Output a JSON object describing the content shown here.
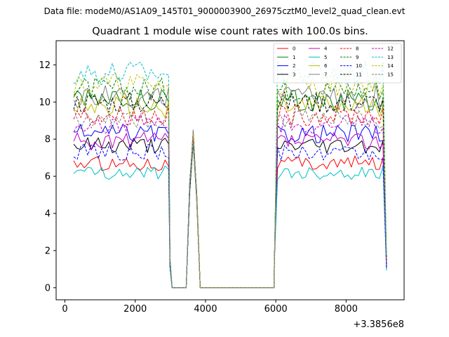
{
  "figure": {
    "suptitle": "Data file: modeM0/AS1A09_145T01_9000003900_26975cztM0_level2_quad_clean.evt"
  },
  "chart_data": {
    "type": "line",
    "title": "Quadrant 1 module wise count rates with 100.0s bins.",
    "xlabel": "",
    "ylabel": "",
    "x_offset_label": "+3.3856e8",
    "xlim": [
      -250,
      9650
    ],
    "ylim": [
      -0.65,
      13.3
    ],
    "xticks": [
      0,
      2000,
      4000,
      6000,
      8000
    ],
    "xtick_labels": [
      "0",
      "2000",
      "4000",
      "6000",
      "8000"
    ],
    "yticks": [
      0,
      2,
      4,
      6,
      8,
      10,
      12
    ],
    "ytick_labels": [
      "0",
      "2",
      "4",
      "6",
      "8",
      "10",
      "12"
    ],
    "grid": false,
    "legend_location": "top-right",
    "series": [
      {
        "name": "0",
        "color": "#ff0000",
        "dash": "solid",
        "level": 6.7
      },
      {
        "name": "1",
        "color": "#008000",
        "dash": "solid",
        "level": 10.1
      },
      {
        "name": "2",
        "color": "#0000ff",
        "dash": "solid",
        "level": 8.3
      },
      {
        "name": "3",
        "color": "#000000",
        "dash": "solid",
        "level": 7.7
      },
      {
        "name": "4",
        "color": "#bf00bf",
        "dash": "solid",
        "level": 7.9
      },
      {
        "name": "5",
        "color": "#00bfbf",
        "dash": "solid",
        "level": 6.2
      },
      {
        "name": "6",
        "color": "#bfbf00",
        "dash": "solid",
        "level": 9.7
      },
      {
        "name": "7",
        "color": "#808080",
        "dash": "solid",
        "level": 10.3
      },
      {
        "name": "8",
        "color": "#ff0000",
        "dash": "dashed",
        "level": 9.3
      },
      {
        "name": "9",
        "color": "#008000",
        "dash": "dashed",
        "level": 10.7
      },
      {
        "name": "10",
        "color": "#0000ff",
        "dash": "dashed",
        "level": 7.3
      },
      {
        "name": "11",
        "color": "#000000",
        "dash": "dashed",
        "level": 10.0
      },
      {
        "name": "12",
        "color": "#bf00bf",
        "dash": "dashed",
        "level": 8.8
      },
      {
        "name": "13",
        "color": "#00bfbf",
        "dash": "dashed",
        "level": 11.6
      },
      {
        "name": "14",
        "color": "#bfbf00",
        "dash": "dashed",
        "level": 10.9
      },
      {
        "name": "15",
        "color": "#808080",
        "dash": "dashed",
        "level": 9.1
      }
    ],
    "time_profile": {
      "segment_a": {
        "x_start": 250,
        "x_end": 2950,
        "step": 100
      },
      "gap_1": {
        "x_start": 3050,
        "x_end": 3450,
        "value": 0
      },
      "spike": {
        "x": [
          3550,
          3650,
          3750
        ],
        "values": [
          5.5,
          8.3,
          5.0
        ]
      },
      "gap_2": {
        "x_start": 3850,
        "x_end": 5950,
        "value": 0
      },
      "segment_b": {
        "x_start": 6050,
        "x_end": 9050,
        "step": 100
      },
      "edge_values": {
        "x2950": 0.75,
        "x9150_fraction": 0.15
      }
    }
  }
}
